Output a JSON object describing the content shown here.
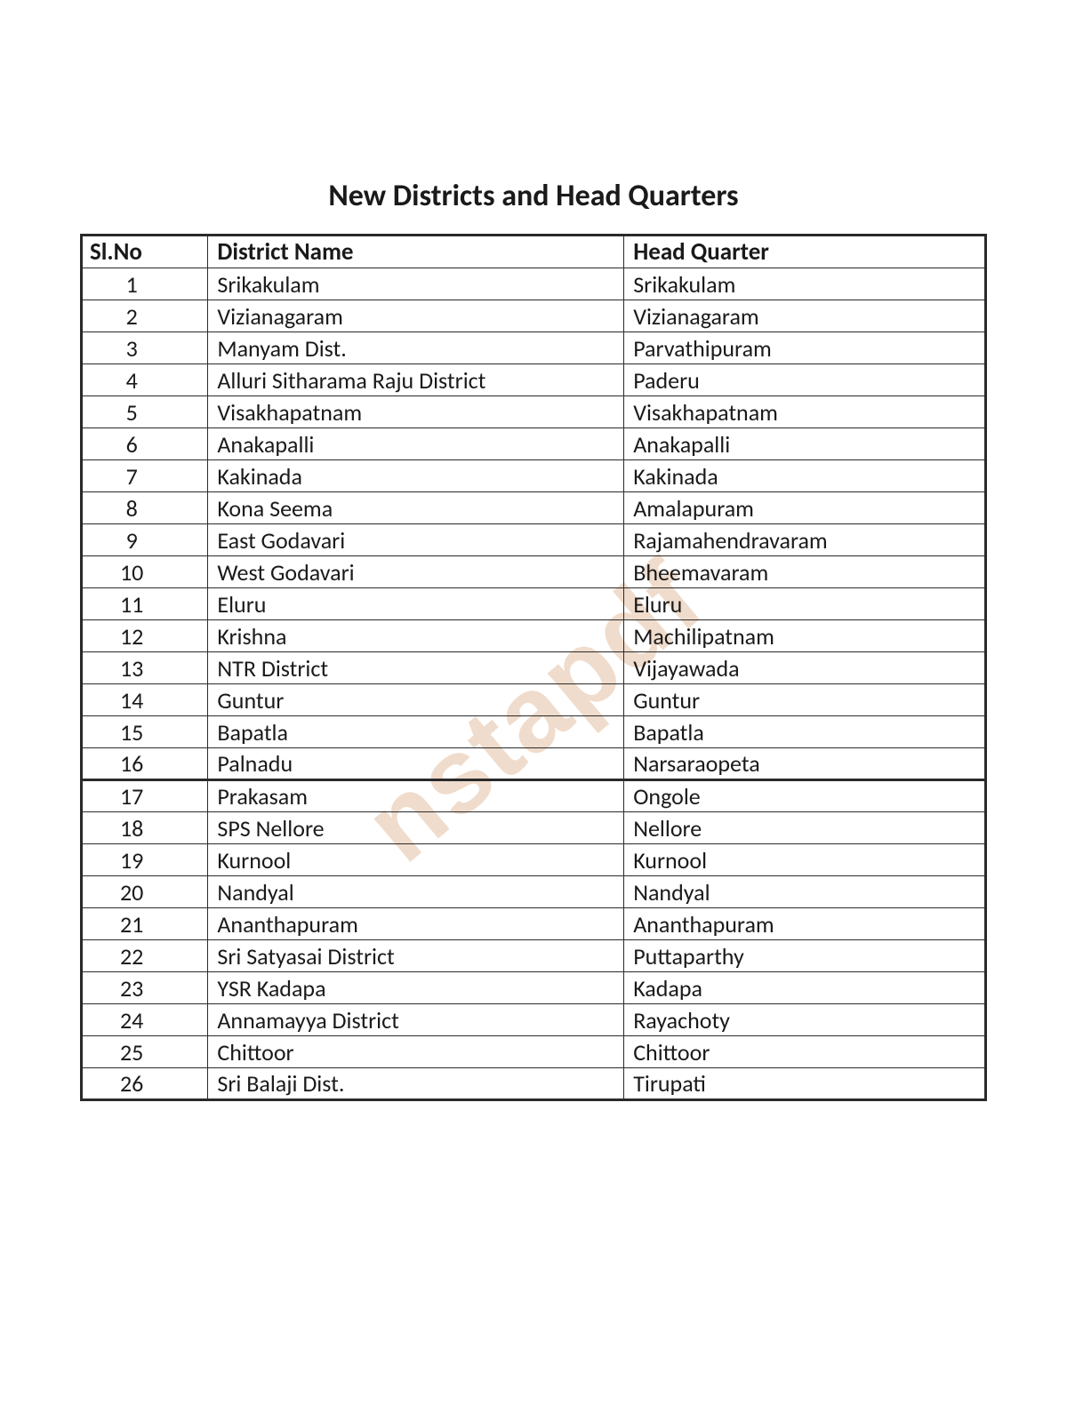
{
  "title": "New Districts and Head Quarters",
  "watermark_text": "nstapdf",
  "watermark_color": "#d9a47a",
  "table": {
    "columns": [
      "Sl.No",
      "District Name",
      "Head Quarter"
    ],
    "col_widths_pct": [
      14,
      46,
      40
    ],
    "header_fontsize": 27,
    "cell_fontsize": 26,
    "border_color": "#2a2a2a",
    "text_color": "#1a1a1a",
    "rows": [
      [
        "1",
        "Srikakulam",
        "Srikakulam"
      ],
      [
        "2",
        "Vizianagaram",
        "Vizianagaram"
      ],
      [
        "3",
        "Manyam Dist.",
        "Parvathipuram"
      ],
      [
        "4",
        "Alluri Sitharama Raju District",
        "Paderu"
      ],
      [
        "5",
        "Visakhapatnam",
        "Visakhapatnam"
      ],
      [
        "6",
        "Anakapalli",
        "Anakapalli"
      ],
      [
        "7",
        "Kakinada",
        "Kakinada"
      ],
      [
        "8",
        "Kona Seema",
        "Amalapuram"
      ],
      [
        "9",
        "East Godavari",
        "Rajamahendravaram"
      ],
      [
        "10",
        "West Godavari",
        "Bheemavaram"
      ],
      [
        "11",
        "Eluru",
        "Eluru"
      ],
      [
        "12",
        "Krishna",
        "Machilipatnam"
      ],
      [
        "13",
        "NTR District",
        "Vijayawada"
      ],
      [
        "14",
        "Guntur",
        "Guntur"
      ],
      [
        "15",
        "Bapatla",
        "Bapatla"
      ],
      [
        "16",
        "Palnadu",
        "Narsaraopeta"
      ],
      [
        "17",
        "Prakasam",
        "Ongole"
      ],
      [
        "18",
        "SPS Nellore",
        "Nellore"
      ],
      [
        "19",
        "Kurnool",
        "Kurnool"
      ],
      [
        "20",
        "Nandyal",
        "Nandyal"
      ],
      [
        "21",
        "Ananthapuram",
        "Ananthapuram"
      ],
      [
        "22",
        "Sri Satyasai District",
        "Puttaparthy"
      ],
      [
        "23",
        "YSR Kadapa",
        "Kadapa"
      ],
      [
        "24",
        "Annamayya District",
        "Rayachoty"
      ],
      [
        "25",
        "Chittoor",
        "Chittoor"
      ],
      [
        "26",
        "Sri Balaji Dist.",
        "Tirupati"
      ]
    ]
  }
}
